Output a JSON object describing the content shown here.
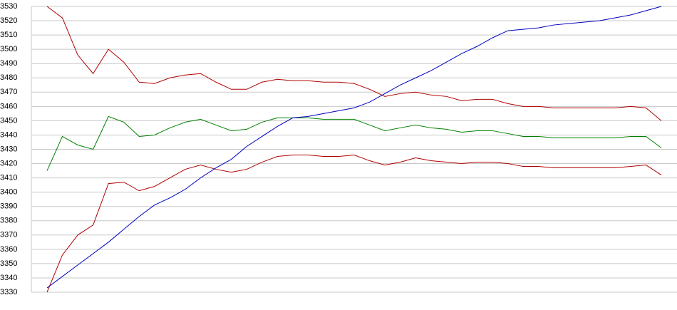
{
  "chart_data": {
    "type": "line",
    "categories": [
      null,
      null,
      null,
      null,
      null,
      null,
      null,
      null,
      null,
      null,
      null,
      null,
      null,
      null,
      null,
      null,
      null,
      null,
      null,
      null,
      null,
      null,
      null,
      null,
      null,
      null,
      null,
      null,
      null,
      null,
      null,
      null,
      null,
      null,
      null,
      null,
      null,
      null,
      null,
      null,
      null
    ],
    "series": [
      {
        "color": "#b00000",
        "values": [
          3530,
          3522,
          3496,
          3483,
          3500,
          3491,
          3477,
          3476,
          3480,
          3482,
          3483,
          3477,
          3472,
          3472,
          3477,
          3479,
          3478,
          3478,
          3477,
          3477,
          3476,
          3472,
          3467,
          3469,
          3470,
          3468,
          3467,
          3464,
          3465,
          3465,
          3462,
          3460,
          3460,
          3459,
          3459,
          3459,
          3459,
          3459,
          3460,
          3459,
          3450
        ]
      },
      {
        "color": "#b00000",
        "values": [
          3330,
          3356,
          3370,
          3377,
          3406,
          3407,
          3401,
          3404,
          3410,
          3416,
          3419,
          3416,
          3414,
          3416,
          3421,
          3425,
          3426,
          3426,
          3425,
          3425,
          3426,
          3422,
          3419,
          3421,
          3424,
          3422,
          3421,
          3420,
          3421,
          3421,
          3420,
          3418,
          3418,
          3417,
          3417,
          3417,
          3417,
          3417,
          3418,
          3419,
          3412
        ]
      },
      {
        "color": "#008000",
        "values": [
          3415,
          3439,
          3433,
          3430,
          3453,
          3449,
          3439,
          3440,
          3445,
          3449,
          3451,
          3447,
          3443,
          3444,
          3449,
          3452,
          3452,
          3452,
          3451,
          3451,
          3451,
          3447,
          3443,
          3445,
          3447,
          3445,
          3444,
          3442,
          3443,
          3443,
          3441,
          3439,
          3439,
          3438,
          3438,
          3438,
          3438,
          3438,
          3439,
          3439,
          3431
        ]
      },
      {
        "color": "#0000c0",
        "values": [
          3333,
          3341,
          3349,
          3357,
          3365,
          3374,
          3383,
          3391,
          3396,
          3402,
          3410,
          3417,
          3423,
          3432,
          3439,
          3446,
          3452,
          3453,
          3455,
          3457,
          3459,
          3463,
          3469,
          3475,
          3480,
          3485,
          3491,
          3497,
          3502,
          3508,
          3513,
          3514,
          3515,
          3517,
          3518,
          3519,
          3520,
          3522,
          3524,
          3527,
          3530
        ]
      }
    ],
    "ylim": [
      3330,
      3530
    ],
    "yticks": [
      3330,
      3340,
      3350,
      3360,
      3370,
      3380,
      3390,
      3400,
      3410,
      3420,
      3430,
      3440,
      3450,
      3460,
      3470,
      3480,
      3490,
      3500,
      3510,
      3520,
      3530
    ],
    "grid": true
  }
}
